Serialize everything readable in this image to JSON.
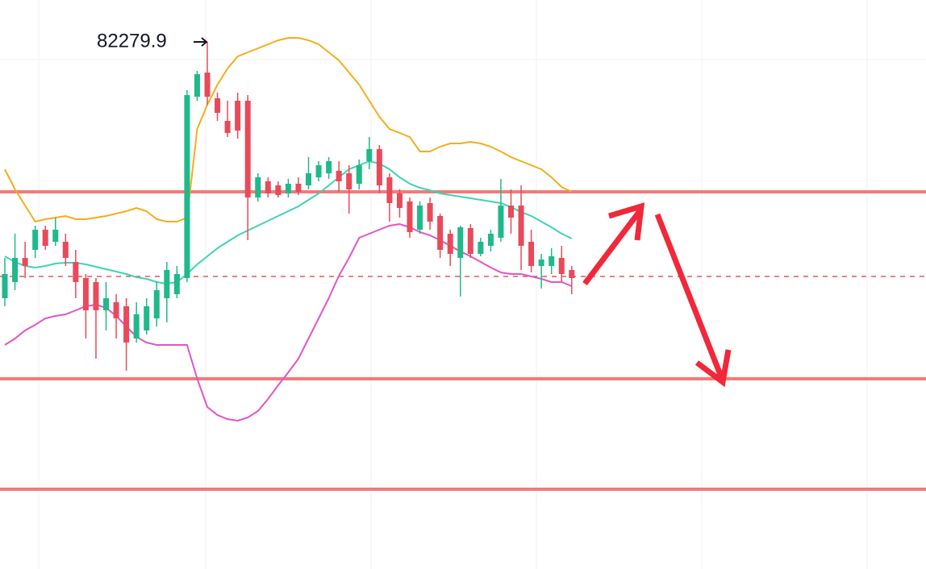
{
  "chart_data": {
    "type": "candlestick",
    "ylim": [
      79010,
      82540
    ],
    "up_color": "#1fb98a",
    "down_color": "#e84a5a",
    "open": [
      80690,
      80790,
      80940,
      80990,
      81115,
      81040,
      81040,
      80915,
      80815,
      80790,
      80615,
      80665,
      80640,
      80440,
      80490,
      80565,
      80690,
      80715,
      80815,
      81940,
      82090,
      81930,
      81790,
      81915,
      81915,
      81315,
      81415,
      81390,
      81340,
      81400,
      81390,
      81440,
      81465,
      81480,
      81465,
      81400,
      81540,
      81615,
      81440,
      81340,
      81290,
      81115,
      81280,
      81200,
      81090,
      80940,
      81125,
      80965,
      81015,
      81065,
      81265,
      81265,
      81040,
      80890,
      80890,
      80940,
      80865
    ],
    "high": [
      80940,
      81090,
      81040,
      81140,
      81140,
      81190,
      81090,
      80990,
      80840,
      80815,
      80790,
      80715,
      80690,
      80665,
      80690,
      80790,
      80915,
      80890,
      81980,
      82100,
      82279.9,
      81965,
      81915,
      81965,
      81950,
      81465,
      81440,
      81415,
      81430,
      81440,
      81565,
      81540,
      81565,
      81540,
      81515,
      81550,
      81690,
      81640,
      81465,
      81365,
      81315,
      81290,
      81315,
      81215,
      81115,
      81140,
      81150,
      81065,
      81115,
      81430,
      81365,
      81390,
      81115,
      80965,
      81000,
      81015,
      80890
    ],
    "low": [
      80640,
      80740,
      80815,
      80940,
      80990,
      81015,
      80890,
      80690,
      80440,
      80315,
      80490,
      80440,
      80240,
      80415,
      80465,
      80515,
      80540,
      80690,
      80790,
      81915,
      81890,
      81790,
      81690,
      81680,
      81050,
      81290,
      81315,
      81315,
      81315,
      81330,
      81365,
      81415,
      81430,
      81350,
      81215,
      81365,
      81490,
      81340,
      81165,
      81190,
      81065,
      81090,
      81115,
      80940,
      80890,
      80700,
      80940,
      80950,
      80980,
      81040,
      81090,
      80865,
      80850,
      80750,
      80840,
      80790,
      80715
    ],
    "close": [
      80840,
      80940,
      80890,
      81115,
      81015,
      81115,
      80940,
      80790,
      80615,
      80615,
      80690,
      80565,
      80415,
      80590,
      80640,
      80740,
      80865,
      80840,
      81950,
      82080,
      81940,
      81840,
      81715,
      81730,
      81315,
      81440,
      81340,
      81330,
      81400,
      81350,
      81465,
      81515,
      81540,
      81415,
      81365,
      81515,
      81615,
      81390,
      81280,
      81250,
      81100,
      81265,
      81165,
      80990,
      80965,
      81130,
      80965,
      81040,
      81090,
      81265,
      81190,
      81015,
      80890,
      80930,
      80950,
      80840,
      80815
    ],
    "bands": [
      {
        "color": "#f5ad1b",
        "values": [
          81490,
          81365,
          81265,
          81165,
          81180,
          81190,
          81200,
          81180,
          81180,
          81190,
          81200,
          81215,
          81230,
          81250,
          81230,
          81180,
          81165,
          81165,
          81190,
          81740,
          81890,
          82015,
          82115,
          82190,
          82215,
          82240,
          82265,
          82290,
          82305,
          82305,
          82290,
          82265,
          82215,
          82165,
          82090,
          82015,
          81915,
          81815,
          81740,
          81715,
          81690,
          81600,
          81600,
          81630,
          81650,
          81650,
          81660,
          81650,
          81630,
          81600,
          81565,
          81540,
          81515,
          81490,
          81440,
          81380,
          81350
        ]
      },
      {
        "color": "#3fd4b2",
        "values": [
          80950,
          80915,
          80890,
          80880,
          80890,
          80905,
          80910,
          80910,
          80900,
          80885,
          80870,
          80855,
          80840,
          80820,
          80810,
          80790,
          80780,
          80790,
          80840,
          80900,
          80950,
          81000,
          81040,
          81080,
          81110,
          81140,
          81170,
          81200,
          81230,
          81260,
          81300,
          81340,
          81390,
          81440,
          81490,
          81515,
          81540,
          81525,
          81490,
          81440,
          81400,
          81375,
          81360,
          81340,
          81330,
          81320,
          81310,
          81300,
          81290,
          81280,
          81255,
          81225,
          81200,
          81165,
          81130,
          81090,
          81060
        ]
      },
      {
        "color": "#e055c8",
        "values": [
          80400,
          80440,
          80490,
          80525,
          80565,
          80580,
          80590,
          80615,
          80640,
          80650,
          80630,
          80580,
          80515,
          80450,
          80415,
          80400,
          80400,
          80400,
          80400,
          80190,
          80015,
          79965,
          79940,
          79930,
          79950,
          79990,
          80065,
          80150,
          80230,
          80315,
          80440,
          80565,
          80690,
          80830,
          80940,
          81065,
          81090,
          81115,
          81140,
          81150,
          81130,
          81100,
          81080,
          81050,
          81015,
          80980,
          80950,
          80915,
          80880,
          80850,
          80840,
          80840,
          80825,
          80810,
          80790,
          80790,
          80765
        ]
      }
    ],
    "levels": [
      {
        "value": 81350,
        "color": "#f47a78",
        "style": "solid"
      },
      {
        "value": 80825,
        "color": "#e8575a",
        "style": "dashed"
      },
      {
        "value": 80190,
        "color": "#f47a78",
        "style": "solid"
      },
      {
        "value": 79505,
        "color": "#f47a78",
        "style": "solid"
      }
    ]
  }
}
